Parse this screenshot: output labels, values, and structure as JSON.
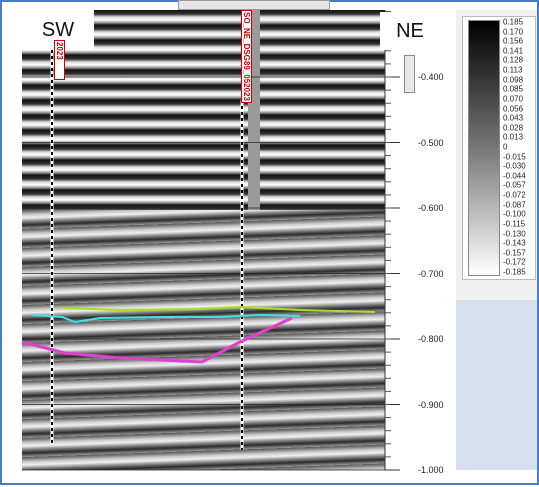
{
  "labels": {
    "left": "SW",
    "right": "NE"
  },
  "wells": [
    "2023",
    "SO_NE_DSG89_052023"
  ],
  "axis": {
    "ticks": [
      "-0.400",
      "-0.500",
      "-0.600",
      "-0.700",
      "-0.800",
      "-0.900",
      "-1.000"
    ]
  },
  "colorbar": {
    "labels": [
      "0.185",
      "0.170",
      "0.156",
      "0.141",
      "0.128",
      "0.113",
      "0.098",
      "0.085",
      "0.070",
      "0.056",
      "0.043",
      "0.028",
      "0.013",
      "0",
      "-0.015",
      "-0.030",
      "-0.044",
      "-0.057",
      "-0.072",
      "-0.087",
      "-0.100",
      "-0.115",
      "-0.130",
      "-0.143",
      "-0.157",
      "-0.172",
      "-0.185"
    ]
  }
}
